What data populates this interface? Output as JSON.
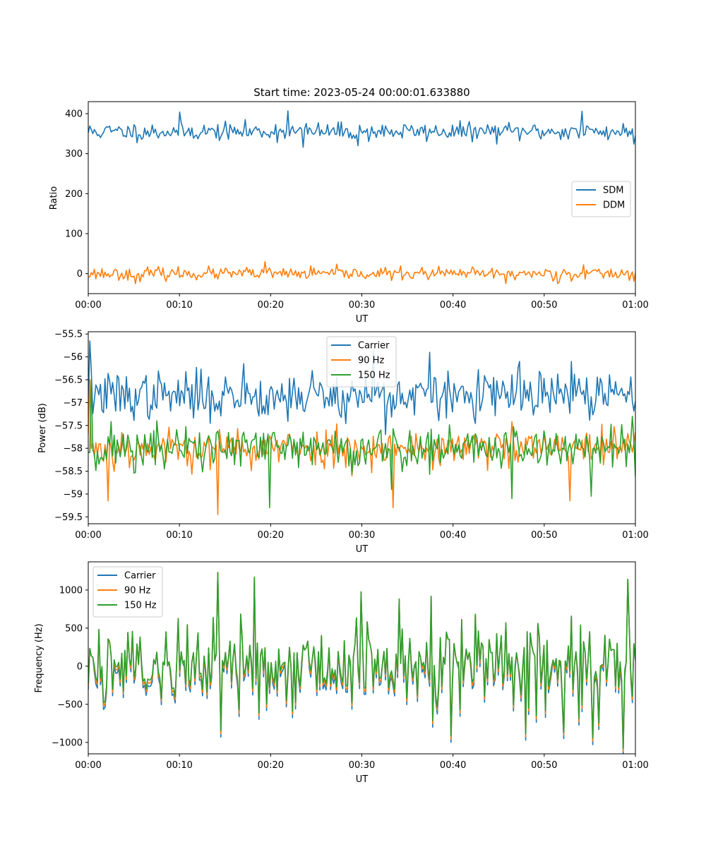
{
  "figure": {
    "title": "Start time: 2023-05-24 00:00:01.633880"
  },
  "chart_data": [
    {
      "type": "line",
      "title": "Start time: 2023-05-24 00:00:01.633880",
      "xlabel": "UT",
      "ylabel": "Ratio",
      "x_range_minutes": [
        0,
        60
      ],
      "xlim": [
        "00:00",
        "01:00"
      ],
      "ylim": [
        -50,
        430
      ],
      "x_ticks": [
        "00:00",
        "00:10",
        "00:20",
        "00:30",
        "00:40",
        "00:50",
        "01:00"
      ],
      "y_ticks": [
        0,
        100,
        200,
        300,
        400
      ],
      "legend": {
        "placement": "center-right",
        "entries": [
          "SDM",
          "DDM"
        ]
      },
      "series": [
        {
          "name": "SDM",
          "color": "#1f77b4",
          "mean": 355,
          "std": 13,
          "seed": 11,
          "spikes": [
            [
              10.1,
              404
            ],
            [
              21.9,
              407
            ],
            [
              23.5,
              316
            ],
            [
              29.6,
              320
            ],
            [
              54.1,
              406
            ],
            [
              59.8,
              324
            ]
          ]
        },
        {
          "name": "DDM",
          "color": "#ff7f0e",
          "mean": 0,
          "std": 9,
          "seed": 23,
          "spikes": [
            [
              5.2,
              -25
            ],
            [
              19.4,
              30
            ],
            [
              45.8,
              -25
            ],
            [
              51.5,
              -25
            ],
            [
              54.3,
              22
            ]
          ]
        }
      ]
    },
    {
      "type": "line",
      "xlabel": "UT",
      "ylabel": "Power (dB)",
      "x_range_minutes": [
        0,
        60
      ],
      "xlim": [
        "00:00",
        "01:00"
      ],
      "ylim": [
        -59.65,
        -55.45
      ],
      "x_ticks": [
        "00:00",
        "00:10",
        "00:20",
        "00:30",
        "00:40",
        "00:50",
        "01:00"
      ],
      "y_ticks": [
        -55.5,
        -56.0,
        -56.5,
        -57.0,
        -57.5,
        -58.0,
        -58.5,
        -59.0,
        -59.5
      ],
      "legend": {
        "placement": "upper-center",
        "entries": [
          "Carrier",
          "90 Hz",
          "150 Hz"
        ]
      },
      "series": [
        {
          "name": "Carrier",
          "color": "#1f77b4",
          "mean": -56.85,
          "std": 0.3,
          "seed": 37,
          "spikes": [
            [
              0.2,
              -55.65
            ],
            [
              0.4,
              -56.3
            ],
            [
              17.0,
              -56.15
            ],
            [
              24.5,
              -56.3
            ],
            [
              31.2,
              -55.85
            ],
            [
              37.4,
              -55.9
            ],
            [
              47.3,
              -56.1
            ],
            [
              53.0,
              -56.1
            ],
            [
              32.6,
              -57.7
            ]
          ]
        },
        {
          "name": "90 Hz",
          "color": "#ff7f0e",
          "mean": -58.0,
          "std": 0.25,
          "seed": 53,
          "spikes": [
            [
              2.2,
              -59.15
            ],
            [
              14.2,
              -59.45
            ],
            [
              33.4,
              -59.3
            ],
            [
              52.8,
              -59.15
            ],
            [
              0.1,
              -56.5
            ]
          ]
        },
        {
          "name": "150 Hz",
          "color": "#2ca02c",
          "mean": -58.0,
          "std": 0.3,
          "seed": 71,
          "spikes": [
            [
              0.3,
              -56.5
            ],
            [
              19.9,
              -59.3
            ],
            [
              46.4,
              -59.1
            ],
            [
              55.2,
              -59.05
            ],
            [
              33.3,
              -58.9
            ],
            [
              59.7,
              -57.3
            ]
          ]
        }
      ]
    },
    {
      "type": "line",
      "xlabel": "UT",
      "ylabel": "Frequency (Hz)",
      "x_range_minutes": [
        0,
        60
      ],
      "xlim": [
        "00:00",
        "01:00"
      ],
      "ylim": [
        -1150,
        1370
      ],
      "x_ticks": [
        "00:00",
        "00:10",
        "00:20",
        "00:30",
        "00:40",
        "00:50",
        "01:00"
      ],
      "y_ticks": [
        -1000,
        -500,
        0,
        500,
        1000
      ],
      "legend": {
        "placement": "upper-left",
        "entries": [
          "Carrier",
          "90 Hz",
          "150 Hz"
        ]
      },
      "series": [
        {
          "name": "Carrier",
          "color": "#1f77b4",
          "seed": 89,
          "std": 380,
          "offset": -85,
          "spikes": [
            [
              14.2,
              1230
            ],
            [
              14.6,
              -930
            ],
            [
              18.2,
              1170
            ],
            [
              55.3,
              -1030
            ],
            [
              59.1,
              1140
            ],
            [
              39.8,
              -1000
            ],
            [
              48.0,
              -970
            ],
            [
              52.2,
              -950
            ]
          ]
        },
        {
          "name": "90 Hz",
          "color": "#ff7f0e",
          "seed": 89,
          "std": 380,
          "offset": -40,
          "spikes": [
            [
              14.2,
              1230
            ],
            [
              14.6,
              -930
            ],
            [
              18.2,
              1170
            ],
            [
              55.3,
              -1030
            ],
            [
              59.1,
              1140
            ],
            [
              39.8,
              -1000
            ],
            [
              48.0,
              -970
            ],
            [
              52.2,
              -950
            ]
          ]
        },
        {
          "name": "150 Hz",
          "color": "#2ca02c",
          "seed": 89,
          "std": 380,
          "offset": 0,
          "spikes": [
            [
              14.2,
              1230
            ],
            [
              14.6,
              -930
            ],
            [
              18.2,
              1170
            ],
            [
              55.3,
              -1030
            ],
            [
              59.1,
              1140
            ],
            [
              39.8,
              -1000
            ],
            [
              48.0,
              -970
            ],
            [
              52.2,
              -950
            ]
          ]
        }
      ]
    }
  ]
}
